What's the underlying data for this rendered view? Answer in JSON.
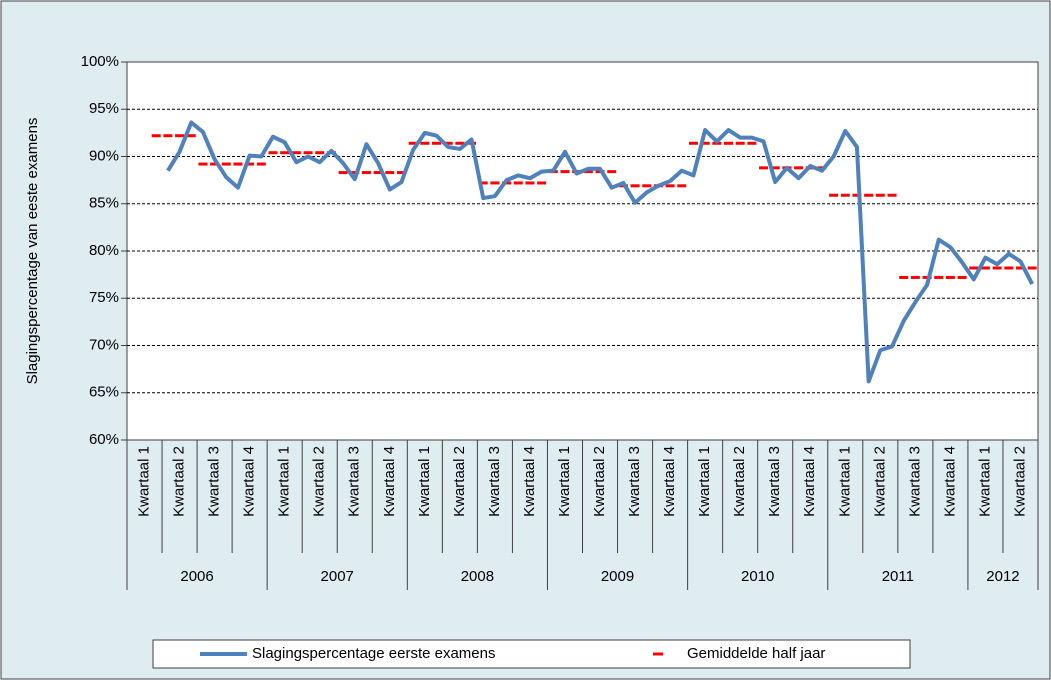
{
  "chart_data": {
    "type": "line",
    "y_axis_label": "Slagingspercentage van eeste examens",
    "categories": [
      null,
      "Kwartaal 1",
      null,
      null,
      "Kwartaal 2",
      null,
      null,
      "Kwartaal 3",
      null,
      null,
      "Kwartaal 4",
      null,
      null,
      "Kwartaal 1",
      null,
      null,
      "Kwartaal 2",
      null,
      null,
      "Kwartaal 3",
      null,
      null,
      "Kwartaal 4",
      null,
      null,
      "Kwartaal 1",
      null,
      null,
      "Kwartaal 2",
      null,
      null,
      "Kwartaal 3",
      null,
      null,
      "Kwartaal 4",
      null,
      null,
      "Kwartaal 1",
      null,
      null,
      "Kwartaal 2",
      null,
      null,
      "Kwartaal 3",
      null,
      null,
      "Kwartaal 4",
      null,
      null,
      "Kwartaal 1",
      null,
      null,
      "Kwartaal 2",
      null,
      null,
      "Kwartaal 3",
      null,
      null,
      "Kwartaal 4",
      null,
      null,
      "Kwartaal 1",
      null,
      null,
      "Kwartaal 2",
      null,
      null,
      "Kwartaal 3",
      null,
      null,
      "Kwartaal 4",
      null,
      null,
      "Kwartaal 1",
      null,
      null,
      "Kwartaal 2",
      null
    ],
    "category_groups": [
      {
        "label": "2006",
        "count": 12
      },
      {
        "label": "2007",
        "count": 12
      },
      {
        "label": "2008",
        "count": 12
      },
      {
        "label": "2009",
        "count": 12
      },
      {
        "label": "2010",
        "count": 12
      },
      {
        "label": "2011",
        "count": 12
      },
      {
        "label": "2012",
        "count": 6
      }
    ],
    "series": [
      {
        "name": "Slagingspercentage eerste examens",
        "color": "#4f81bd",
        "style": "line",
        "values": [
          null,
          null,
          null,
          88.5,
          90.5,
          93.6,
          92.6,
          89.7,
          87.8,
          86.7,
          90.1,
          90.0,
          92.1,
          91.5,
          89.4,
          90.0,
          89.4,
          90.6,
          89.3,
          87.6,
          91.3,
          89.3,
          86.5,
          87.3,
          90.7,
          92.5,
          92.2,
          91.0,
          90.8,
          91.8,
          85.6,
          85.8,
          87.5,
          88.0,
          87.7,
          88.4,
          88.5,
          90.5,
          88.2,
          88.7,
          88.7,
          86.7,
          87.2,
          85.1,
          86.2,
          86.9,
          87.4,
          88.5,
          88.0,
          92.8,
          91.6,
          92.8,
          92.0,
          92.0,
          91.6,
          87.3,
          88.8,
          87.7,
          89.0,
          88.5,
          90.0,
          92.7,
          91.0,
          66.2,
          69.5,
          69.9,
          72.6,
          74.6,
          76.4,
          81.2,
          80.4,
          78.8,
          77.0,
          79.3,
          78.6,
          79.7,
          78.9,
          76.5
        ]
      },
      {
        "name": "Gemiddelde half jaar",
        "color": "#ff0000",
        "style": "dash",
        "values": [
          null,
          null,
          92.2,
          92.2,
          92.2,
          92.2,
          89.2,
          89.2,
          89.2,
          89.2,
          89.2,
          89.2,
          90.4,
          90.4,
          90.4,
          90.4,
          90.4,
          90.4,
          88.3,
          88.3,
          88.3,
          88.3,
          88.3,
          88.3,
          91.4,
          91.4,
          91.4,
          91.4,
          91.4,
          91.4,
          87.2,
          87.2,
          87.2,
          87.2,
          87.2,
          87.2,
          88.4,
          88.4,
          88.4,
          88.4,
          88.4,
          88.4,
          86.9,
          86.9,
          86.9,
          86.9,
          86.9,
          86.9,
          91.4,
          91.4,
          91.4,
          91.4,
          91.4,
          91.4,
          88.8,
          88.8,
          88.8,
          88.8,
          88.8,
          88.8,
          85.9,
          85.9,
          85.9,
          85.9,
          85.9,
          85.9,
          77.2,
          77.2,
          77.2,
          77.2,
          77.2,
          77.2,
          78.2,
          78.2,
          78.2,
          78.2,
          78.2,
          78.2
        ]
      }
    ],
    "ylim": [
      60,
      100
    ],
    "yticks": [
      {
        "value": 60,
        "label": "60%"
      },
      {
        "value": 65,
        "label": "65%"
      },
      {
        "value": 70,
        "label": "70%"
      },
      {
        "value": 75,
        "label": "75%"
      },
      {
        "value": 80,
        "label": "80%"
      },
      {
        "value": 85,
        "label": "85%"
      },
      {
        "value": 90,
        "label": "90%"
      },
      {
        "value": 95,
        "label": "95%"
      },
      {
        "value": 100,
        "label": "100%"
      }
    ],
    "grid": true,
    "legend": "bottom"
  }
}
